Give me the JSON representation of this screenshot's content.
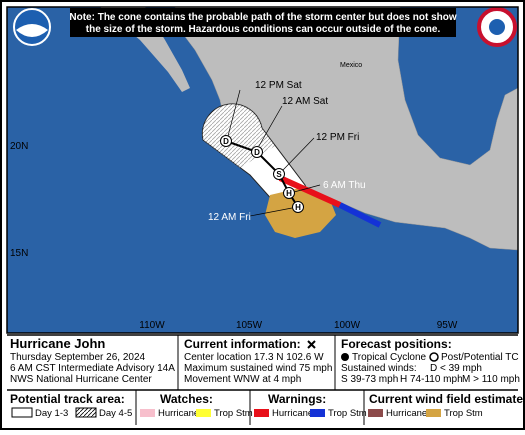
{
  "header": {
    "note_lines": [
      "Note: The cone contains the probable path of the storm center but does not show",
      "the size of the storm. Hazardous conditions can occur outside of the cone."
    ]
  },
  "map": {
    "country_label": "Mexico",
    "lat_labels": [
      "20N",
      "15N"
    ],
    "lon_labels": [
      "110W",
      "105W",
      "100W",
      "95W"
    ],
    "track_labels": [
      "12 PM Sat",
      "12 AM Sat",
      "12 PM Fri",
      "6 AM Thu",
      "12 AM Fri"
    ],
    "markers": [
      "D",
      "D",
      "S",
      "H",
      "H"
    ]
  },
  "info": {
    "storm": "Hurricane John",
    "date": "Thursday September 26, 2024",
    "advisory": "6 AM CST Intermediate Advisory 14A",
    "center": "NWS National Hurricane Center"
  },
  "current": {
    "title": "Current information:",
    "lines": [
      "Center location 17.3 N 102.6 W",
      "Maximum sustained wind 75 mph",
      "Movement WNW at 4 mph"
    ]
  },
  "forecast": {
    "title": "Forecast positions:",
    "tropical": "Tropical Cyclone",
    "post": "Post/Potential TC",
    "winds_label": "Sustained winds:",
    "d": "D < 39 mph",
    "scale": [
      "S 39-73 mph",
      "H 74-110 mph",
      "M > 110 mph"
    ]
  },
  "legend": {
    "track": {
      "title": "Potential track area:",
      "items": [
        "Day 1-3",
        "Day 4-5"
      ]
    },
    "watches": {
      "title": "Watches:",
      "items": [
        "Hurricane",
        "Trop Stm"
      ]
    },
    "warnings": {
      "title": "Warnings:",
      "items": [
        "Hurricane",
        "Trop Stm"
      ]
    },
    "wind": {
      "title": "Current wind field estimate:",
      "items": [
        "Hurricane",
        "Trop Stm"
      ]
    }
  }
}
